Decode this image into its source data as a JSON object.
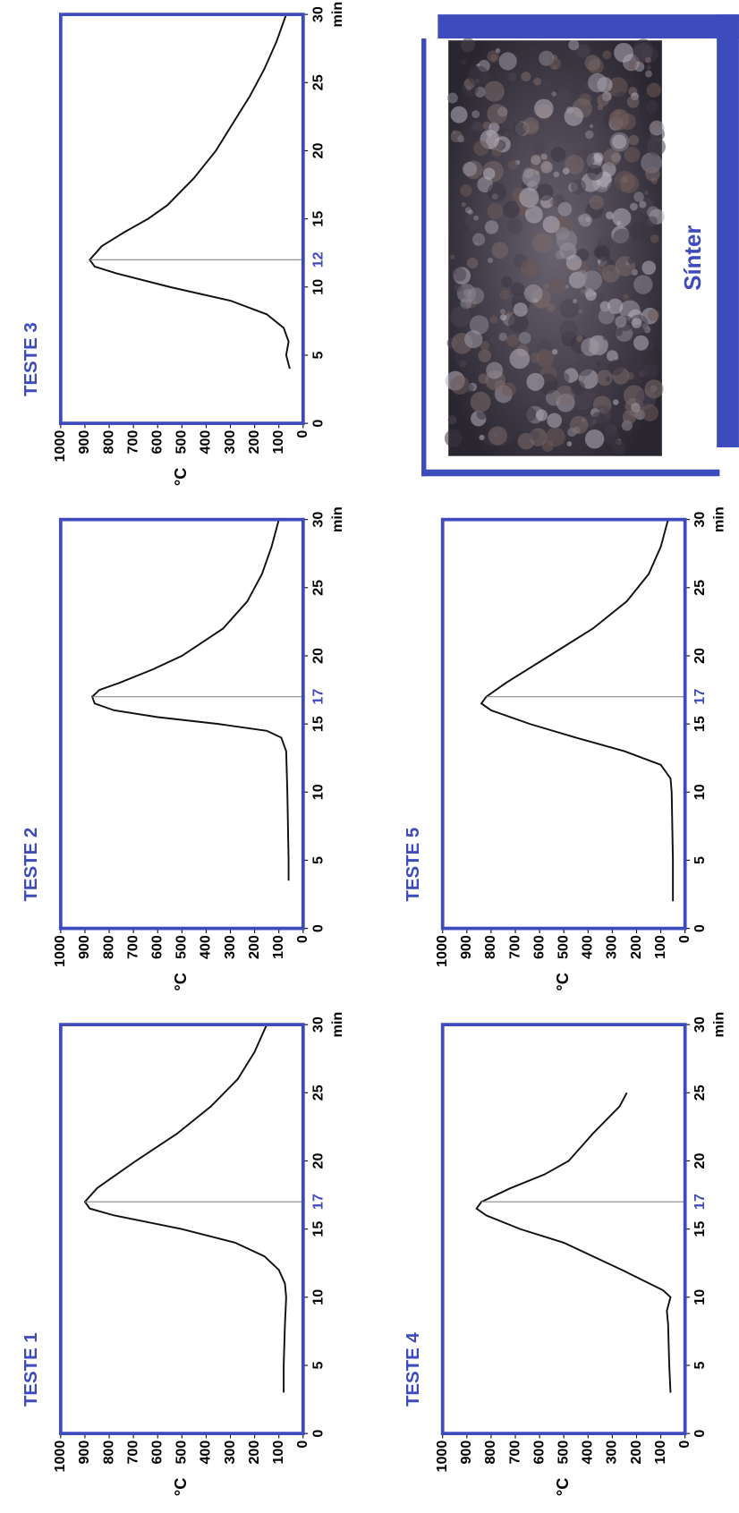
{
  "chart_data": [
    {
      "type": "line",
      "title": "TESTE 1",
      "x_label": "min",
      "y_label": "°C",
      "x": [
        3,
        5,
        8,
        10,
        11,
        12,
        13,
        14,
        15,
        16,
        16.5,
        17,
        18,
        19,
        20,
        22,
        24,
        26,
        28,
        30
      ],
      "series": [
        {
          "color": "#111111",
          "values": [
            80,
            80,
            75,
            70,
            75,
            100,
            160,
            280,
            500,
            780,
            880,
            900,
            850,
            770,
            690,
            520,
            380,
            270,
            200,
            150
          ]
        }
      ],
      "xlim": [
        0,
        30
      ],
      "ylim": [
        0,
        1000
      ],
      "xticks": [
        0,
        5,
        10,
        15,
        20,
        25,
        30
      ],
      "yticks": [
        0,
        100,
        200,
        300,
        400,
        500,
        600,
        700,
        800,
        900,
        1000
      ],
      "peak_marker": {
        "x": 17,
        "color": "#3d4bbd"
      },
      "frame_color": "#3d4bbd"
    },
    {
      "type": "line",
      "title": "TESTE 2",
      "x_label": "min",
      "y_label": "°C",
      "x": [
        3.5,
        5,
        10,
        13,
        14,
        14.5,
        15,
        15.5,
        16,
        16.5,
        17,
        17.5,
        18,
        19,
        20,
        22,
        24,
        26,
        28,
        30
      ],
      "series": [
        {
          "color": "#111111",
          "values": [
            60,
            60,
            65,
            70,
            90,
            150,
            350,
            600,
            780,
            860,
            870,
            840,
            760,
            620,
            500,
            330,
            230,
            170,
            130,
            100
          ]
        }
      ],
      "xlim": [
        0,
        30
      ],
      "ylim": [
        0,
        1000
      ],
      "xticks": [
        0,
        5,
        10,
        15,
        20,
        25,
        30
      ],
      "yticks": [
        0,
        100,
        200,
        300,
        400,
        500,
        600,
        700,
        800,
        900,
        1000
      ],
      "peak_marker": {
        "x": 17,
        "color": "#3d4bbd"
      },
      "frame_color": "#3d4bbd"
    },
    {
      "type": "line",
      "title": "TESTE 3",
      "x_label": "min",
      "y_label": "°C",
      "x": [
        4,
        5,
        6,
        7,
        8,
        9,
        10,
        11,
        11.5,
        12,
        13,
        14,
        15,
        16,
        18,
        20,
        22,
        24,
        26,
        28,
        30
      ],
      "series": [
        {
          "color": "#111111",
          "values": [
            55,
            70,
            60,
            80,
            150,
            300,
            550,
            770,
            860,
            880,
            830,
            740,
            640,
            560,
            450,
            360,
            290,
            220,
            160,
            110,
            70
          ]
        }
      ],
      "xlim": [
        0,
        30
      ],
      "ylim": [
        0,
        1000
      ],
      "xticks": [
        0,
        5,
        10,
        15,
        20,
        25,
        30
      ],
      "yticks": [
        0,
        100,
        200,
        300,
        400,
        500,
        600,
        700,
        800,
        900,
        1000
      ],
      "peak_marker": {
        "x": 12,
        "color": "#3d4bbd"
      },
      "frame_color": "#3d4bbd"
    },
    {
      "type": "line",
      "title": "TESTE 4",
      "x_label": "min",
      "y_label": "°C",
      "x": [
        3,
        5,
        8,
        9,
        10,
        10.5,
        12,
        14,
        15,
        16,
        16.5,
        17,
        18,
        19,
        20,
        22,
        24,
        25
      ],
      "series": [
        {
          "color": "#111111",
          "values": [
            60,
            65,
            70,
            75,
            60,
            90,
            260,
            500,
            680,
            820,
            860,
            840,
            720,
            580,
            480,
            380,
            270,
            240
          ]
        }
      ],
      "xlim": [
        0,
        30
      ],
      "ylim": [
        0,
        1000
      ],
      "xticks": [
        0,
        5,
        10,
        15,
        20,
        25,
        30
      ],
      "yticks": [
        0,
        100,
        200,
        300,
        400,
        500,
        600,
        700,
        800,
        900,
        1000
      ],
      "peak_marker": {
        "x": 17,
        "color": "#3d4bbd"
      },
      "frame_color": "#3d4bbd"
    },
    {
      "type": "line",
      "title": "TESTE 5",
      "x_label": "min",
      "y_label": "°C",
      "x": [
        2,
        5,
        10,
        11,
        12,
        13,
        14,
        15,
        16,
        16.5,
        17,
        18,
        20,
        22,
        24,
        26,
        28,
        30
      ],
      "series": [
        {
          "color": "#111111",
          "values": [
            50,
            50,
            55,
            60,
            100,
            250,
            450,
            640,
            800,
            840,
            820,
            740,
            560,
            380,
            240,
            150,
            100,
            70
          ]
        }
      ],
      "xlim": [
        0,
        30
      ],
      "ylim": [
        0,
        1000
      ],
      "xticks": [
        0,
        5,
        10,
        15,
        20,
        25,
        30
      ],
      "yticks": [
        0,
        100,
        200,
        300,
        400,
        500,
        600,
        700,
        800,
        900,
        1000
      ],
      "peak_marker": {
        "x": 17,
        "color": "#3d4bbd"
      },
      "frame_color": "#3d4bbd"
    }
  ],
  "photo": {
    "caption": "Sínter"
  }
}
